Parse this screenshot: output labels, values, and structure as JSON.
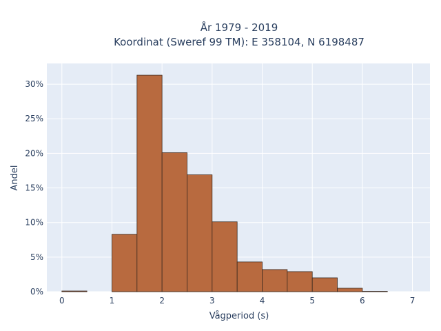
{
  "chart_data": {
    "type": "bar",
    "title_lines": [
      "År 1979 - 2019",
      "Koordinat (Sweref 99 TM): E 358104, N 6198487"
    ],
    "xlabel": "Vågperiod (s)",
    "ylabel": "Andel",
    "xlim": [
      -0.3,
      7.35
    ],
    "ylim": [
      0,
      33
    ],
    "x_ticks": [
      0,
      1,
      2,
      3,
      4,
      5,
      6,
      7
    ],
    "y_ticks": [
      0,
      5,
      10,
      15,
      20,
      25,
      30
    ],
    "y_tick_suffix": "%",
    "bin_width": 0.5,
    "bins": [
      {
        "x0": 0.0,
        "value": 0.1
      },
      {
        "x0": 0.5,
        "value": 0.0
      },
      {
        "x0": 1.0,
        "value": 8.3
      },
      {
        "x0": 1.5,
        "value": 31.3
      },
      {
        "x0": 2.0,
        "value": 20.1
      },
      {
        "x0": 2.5,
        "value": 16.9
      },
      {
        "x0": 3.0,
        "value": 10.1
      },
      {
        "x0": 3.5,
        "value": 4.3
      },
      {
        "x0": 4.0,
        "value": 3.2
      },
      {
        "x0": 4.5,
        "value": 2.9
      },
      {
        "x0": 5.0,
        "value": 2.0
      },
      {
        "x0": 5.5,
        "value": 0.5
      },
      {
        "x0": 6.0,
        "value": 0.05
      },
      {
        "x0": 6.5,
        "value": 0.0
      }
    ],
    "grid": true,
    "colors": {
      "bar_fill": "#b86a3f",
      "bar_edge": "#3b2a20",
      "plot_bg": "#e5ecf6",
      "grid": "#ffffff"
    }
  }
}
